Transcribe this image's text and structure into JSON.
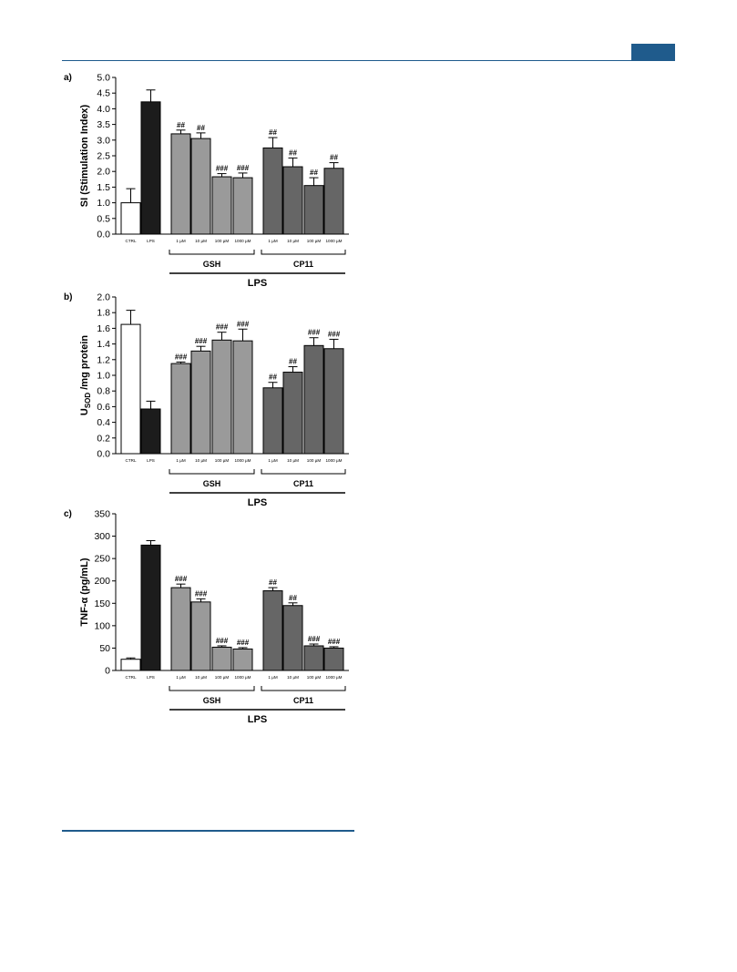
{
  "colors": {
    "rule": "#1f5b8c",
    "ctrl": "#ffffff",
    "lps": "#1c1c1c",
    "gsh": "#9a9a9a",
    "cp11": "#666666"
  },
  "chart_data": [
    {
      "type": "bar",
      "panel_label": "a)",
      "ylabel": "SI (Stimulation Index)",
      "ylim": [
        0,
        5
      ],
      "yticks": [
        "0.0",
        "0.5",
        "1.0",
        "1.5",
        "2.0",
        "2.5",
        "3.0",
        "3.5",
        "4.0",
        "4.5",
        "5.0"
      ],
      "categories": [
        "CTRL",
        "LPS",
        "1 µM",
        "10 µM",
        "100 µM",
        "1000 µM",
        "1 µM",
        "10 µM",
        "100 µM",
        "1000 µM"
      ],
      "values": [
        1.0,
        4.22,
        3.2,
        3.05,
        1.83,
        1.8,
        2.75,
        2.15,
        1.55,
        2.1
      ],
      "errors": [
        0.45,
        0.38,
        0.12,
        0.18,
        0.1,
        0.15,
        0.33,
        0.28,
        0.25,
        0.18
      ],
      "annotations": [
        "",
        "",
        "##",
        "##",
        "###",
        "###",
        "##",
        "##",
        "##",
        "##"
      ],
      "groups": [
        "GSH",
        "CP11"
      ],
      "group_super": "LPS"
    },
    {
      "type": "bar",
      "panel_label": "b)",
      "ylabel": "USOD /mg protein",
      "ylabel_main": "U",
      "ylabel_sub": "SOD",
      "ylabel_rest": " /mg protein",
      "ylim": [
        0,
        2
      ],
      "yticks": [
        "0.0",
        "0.2",
        "0.4",
        "0.6",
        "0.8",
        "1.0",
        "1.2",
        "1.4",
        "1.6",
        "1.8",
        "2.0"
      ],
      "categories": [
        "CTRL",
        "LPS",
        "1 µM",
        "10 µM",
        "100 µM",
        "1000 µM",
        "1 µM",
        "10 µM",
        "100 µM",
        "1000 µM"
      ],
      "values": [
        1.65,
        0.57,
        1.15,
        1.31,
        1.45,
        1.44,
        0.84,
        1.04,
        1.38,
        1.34
      ],
      "errors": [
        0.18,
        0.1,
        0.02,
        0.06,
        0.1,
        0.15,
        0.07,
        0.07,
        0.1,
        0.12
      ],
      "annotations": [
        "",
        "",
        "###",
        "###",
        "###",
        "###",
        "##",
        "##",
        "###",
        "###"
      ],
      "groups": [
        "GSH",
        "CP11"
      ],
      "group_super": "LPS"
    },
    {
      "type": "bar",
      "panel_label": "c)",
      "ylabel": "TNF-α (pg/mL)",
      "ylim": [
        0,
        350
      ],
      "yticks": [
        "0",
        "50",
        "100",
        "150",
        "200",
        "250",
        "300",
        "350"
      ],
      "categories": [
        "CTRL",
        "LPS",
        "1 µM",
        "10 µM",
        "100 µM",
        "1000 µM",
        "1 µM",
        "10 µM",
        "100 µM",
        "1000 µM"
      ],
      "values": [
        25,
        280,
        185,
        153,
        52,
        48,
        178,
        145,
        55,
        50
      ],
      "errors": [
        3,
        10,
        8,
        7,
        3,
        3,
        7,
        6,
        4,
        3
      ],
      "annotations": [
        "",
        "",
        "###",
        "###",
        "###",
        "###",
        "##",
        "##",
        "###",
        "###"
      ],
      "groups": [
        "GSH",
        "CP11"
      ],
      "group_super": "LPS"
    }
  ]
}
